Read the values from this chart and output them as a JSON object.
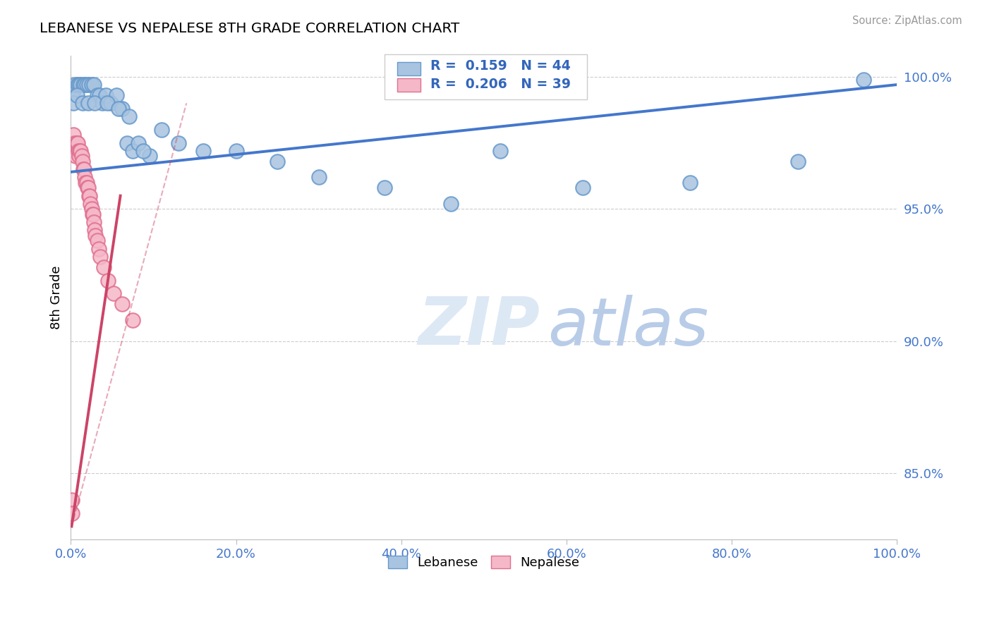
{
  "title": "LEBANESE VS NEPALESE 8TH GRADE CORRELATION CHART",
  "source": "Source: ZipAtlas.com",
  "ylabel": "8th Grade",
  "xlim": [
    0.0,
    1.0
  ],
  "ylim": [
    0.825,
    1.008
  ],
  "y_tick_positions": [
    0.85,
    0.9,
    0.95,
    1.0
  ],
  "y_tick_labels": [
    "85.0%",
    "90.0%",
    "95.0%",
    "100.0%"
  ],
  "x_tick_positions": [
    0.0,
    0.2,
    0.4,
    0.6,
    0.8,
    1.0
  ],
  "x_tick_labels": [
    "0.0%",
    "20.0%",
    "40.0%",
    "60.0%",
    "80.0%",
    "100.0%"
  ],
  "legend_r_blue": "0.159",
  "legend_n_blue": "44",
  "legend_r_pink": "0.206",
  "legend_n_pink": "39",
  "blue_marker_color": "#A8C4E0",
  "blue_edge_color": "#6699CC",
  "pink_marker_color": "#F5B8C8",
  "pink_edge_color": "#E07090",
  "blue_line_color": "#4477CC",
  "pink_line_color": "#CC4466",
  "legend_label_blue": "Lebanese",
  "legend_label_pink": "Nepalese",
  "legend_text_color": "#3366BB",
  "tick_color": "#4477CC",
  "background_color": "#FFFFFF",
  "grid_color": "#CCCCCC",
  "blue_x": [
    0.002,
    0.005,
    0.008,
    0.01,
    0.012,
    0.015,
    0.017,
    0.019,
    0.022,
    0.025,
    0.028,
    0.032,
    0.035,
    0.038,
    0.042,
    0.048,
    0.055,
    0.062,
    0.068,
    0.075,
    0.082,
    0.095,
    0.11,
    0.13,
    0.16,
    0.2,
    0.25,
    0.3,
    0.38,
    0.46,
    0.52,
    0.62,
    0.75,
    0.88,
    0.96,
    0.003,
    0.007,
    0.014,
    0.021,
    0.029,
    0.044,
    0.058,
    0.071,
    0.088
  ],
  "blue_y": [
    0.994,
    0.997,
    0.997,
    0.997,
    0.997,
    0.997,
    0.997,
    0.997,
    0.997,
    0.997,
    0.997,
    0.993,
    0.993,
    0.99,
    0.993,
    0.99,
    0.993,
    0.988,
    0.975,
    0.972,
    0.975,
    0.97,
    0.98,
    0.975,
    0.972,
    0.972,
    0.968,
    0.962,
    0.958,
    0.952,
    0.972,
    0.958,
    0.96,
    0.968,
    0.999,
    0.99,
    0.993,
    0.99,
    0.99,
    0.99,
    0.99,
    0.988,
    0.985,
    0.972
  ],
  "pink_x": [
    0.001,
    0.001,
    0.002,
    0.003,
    0.004,
    0.005,
    0.006,
    0.007,
    0.008,
    0.009,
    0.01,
    0.011,
    0.012,
    0.013,
    0.014,
    0.015,
    0.016,
    0.017,
    0.018,
    0.019,
    0.02,
    0.021,
    0.022,
    0.023,
    0.024,
    0.025,
    0.026,
    0.027,
    0.028,
    0.029,
    0.03,
    0.032,
    0.034,
    0.036,
    0.04,
    0.045,
    0.052,
    0.062,
    0.075
  ],
  "pink_y": [
    0.84,
    0.835,
    0.975,
    0.978,
    0.972,
    0.975,
    0.97,
    0.975,
    0.975,
    0.972,
    0.97,
    0.972,
    0.972,
    0.97,
    0.968,
    0.965,
    0.965,
    0.962,
    0.96,
    0.96,
    0.958,
    0.958,
    0.955,
    0.955,
    0.952,
    0.95,
    0.948,
    0.948,
    0.945,
    0.942,
    0.94,
    0.938,
    0.935,
    0.932,
    0.928,
    0.923,
    0.918,
    0.914,
    0.908
  ],
  "blue_trend": [
    0.0,
    1.0,
    0.964,
    0.997
  ],
  "pink_trend_solid": [
    0.001,
    0.06,
    0.83,
    0.955
  ],
  "pink_trend_dash": [
    0.001,
    0.14,
    0.83,
    0.99
  ],
  "watermark_zip": "ZIP",
  "watermark_atlas": "atlas"
}
